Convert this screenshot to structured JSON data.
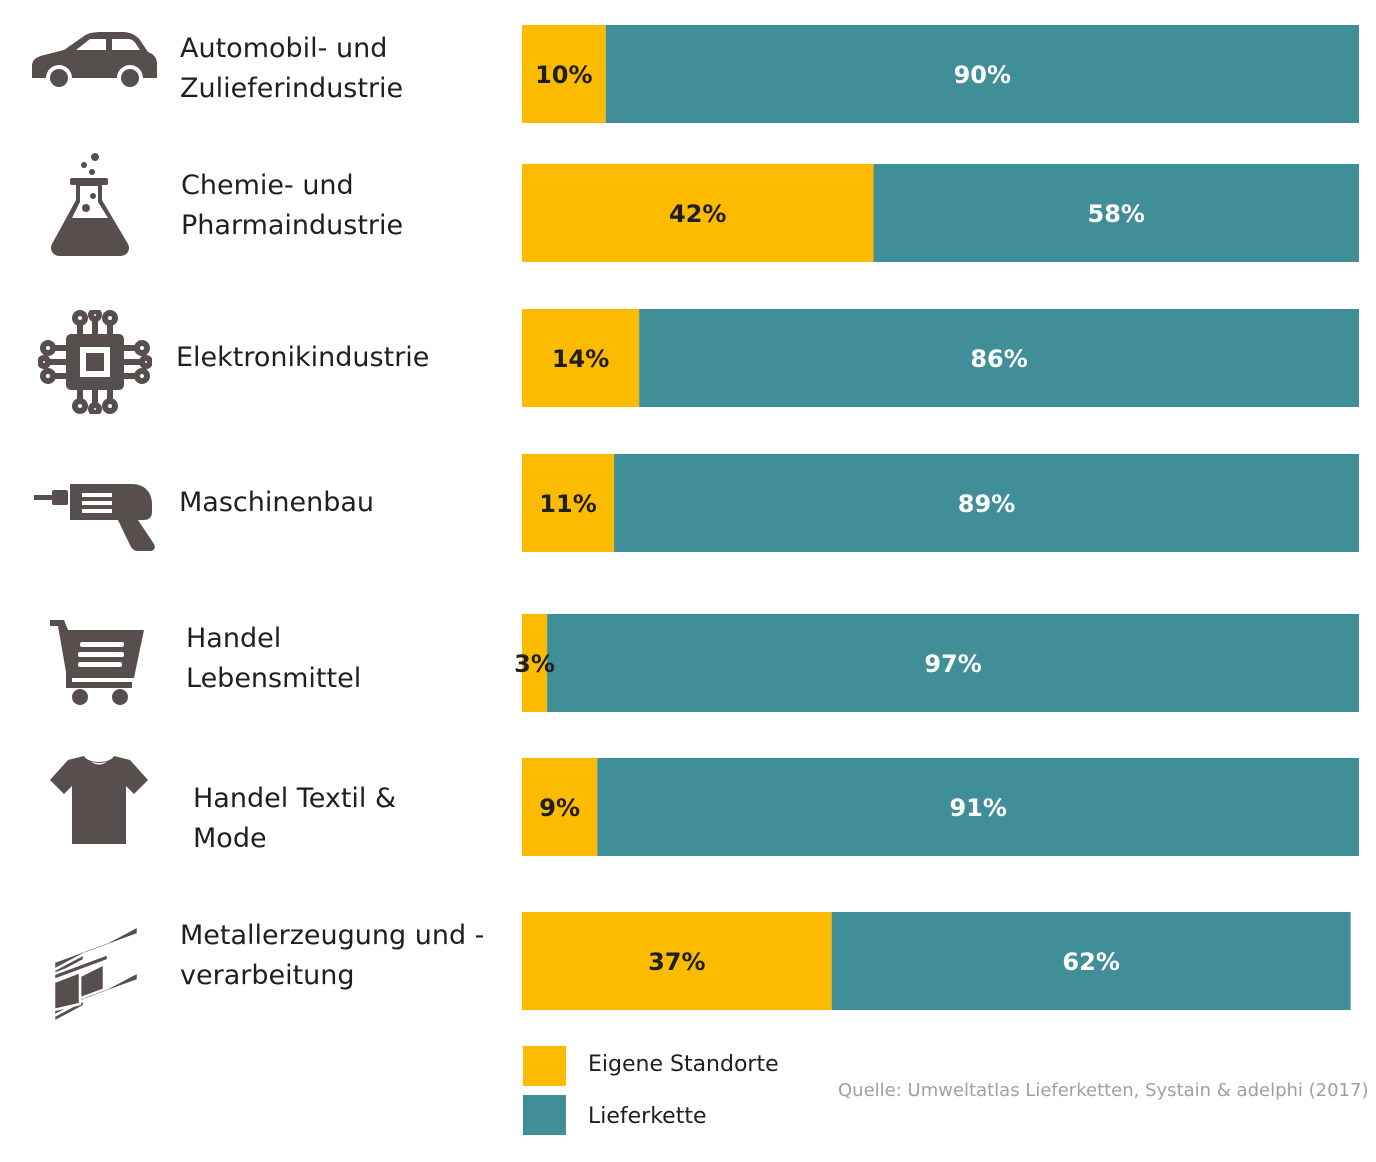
{
  "colors": {
    "own": "#fdbb00",
    "supply": "#408e98",
    "icon": "#574f4d",
    "label_dark": "#1f1f1f",
    "label_light": "#ffffff",
    "source": "#a39f99"
  },
  "chart_data": {
    "type": "bar",
    "orientation": "horizontal",
    "stacked": true,
    "normalized": true,
    "categories": [
      "Automobil- und Zulieferindustrie",
      "Chemie- und Pharmaindustrie",
      "Elektronikindustrie",
      "Maschinenbau",
      "Handel Lebensmittel",
      "Handel Textil & Mode",
      "Metallerzeugung und -verarbeitung"
    ],
    "series": [
      {
        "name": "Eigene Standorte",
        "values": [
          10,
          42,
          14,
          11,
          3,
          9,
          37
        ]
      },
      {
        "name": "Lieferkette",
        "values": [
          90,
          58,
          86,
          89,
          97,
          91,
          62
        ]
      }
    ],
    "data_labels": [
      [
        "10%",
        "90%"
      ],
      [
        "42%",
        "58%"
      ],
      [
        "14%",
        "86%"
      ],
      [
        "11%",
        "89%"
      ],
      [
        "3%",
        "97%"
      ],
      [
        "9%",
        "91%"
      ],
      [
        "37%",
        "62%"
      ]
    ],
    "xlim": [
      0,
      100
    ],
    "title": "",
    "xlabel": "",
    "ylabel": "",
    "grid": false,
    "legend_position": "bottom"
  },
  "rows": [
    {
      "icon": "car-icon",
      "label_lines": [
        "Automobil- und",
        "Zulieferindustrie"
      ]
    },
    {
      "icon": "flask-icon",
      "label_lines": [
        "Chemie- und",
        "Pharmaindustrie"
      ]
    },
    {
      "icon": "chip-icon",
      "label_lines": [
        "Elektronikindustrie"
      ]
    },
    {
      "icon": "drill-icon",
      "label_lines": [
        "Maschinenbau"
      ]
    },
    {
      "icon": "shopping-cart-icon",
      "label_lines": [
        "Handel",
        "Lebensmittel"
      ]
    },
    {
      "icon": "tshirt-icon",
      "label_lines": [
        "Handel Textil &",
        "Mode"
      ]
    },
    {
      "icon": "steel-beam-icon",
      "label_lines": [
        "Metallerzeugung und -",
        "verarbeitung"
      ]
    }
  ],
  "legend": {
    "own_label": "Eigene Standorte",
    "supply_label": "Lieferkette"
  },
  "source": "Quelle: Umweltatlas Lieferketten, Systain & adelphi (2017)"
}
